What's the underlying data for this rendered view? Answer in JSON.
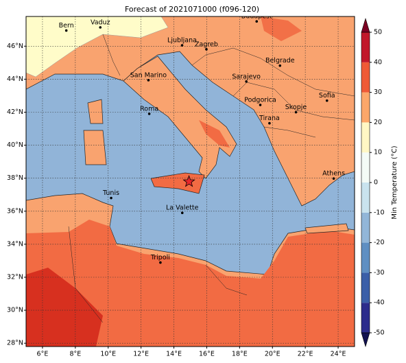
{
  "chart_data": {
    "type": "map",
    "title": "Forecast of 2021071000 (f096-120)",
    "xlim": [
      5,
      25
    ],
    "ylim": [
      27.8,
      47.8
    ],
    "xticks": [
      {
        "value": 6,
        "label": "6°E"
      },
      {
        "value": 8,
        "label": "8°E"
      },
      {
        "value": 10,
        "label": "10°E"
      },
      {
        "value": 12,
        "label": "12°E"
      },
      {
        "value": 14,
        "label": "14°E"
      },
      {
        "value": 16,
        "label": "16°E"
      },
      {
        "value": 18,
        "label": "18°E"
      },
      {
        "value": 20,
        "label": "20°E"
      },
      {
        "value": 22,
        "label": "22°E"
      },
      {
        "value": 24,
        "label": "24°E"
      }
    ],
    "yticks": [
      {
        "value": 28,
        "label": "28°N"
      },
      {
        "value": 30,
        "label": "30°N"
      },
      {
        "value": 32,
        "label": "32°N"
      },
      {
        "value": 34,
        "label": "34°N"
      },
      {
        "value": 36,
        "label": "36°N"
      },
      {
        "value": 38,
        "label": "38°N"
      },
      {
        "value": 40,
        "label": "40°N"
      },
      {
        "value": 42,
        "label": "42°N"
      },
      {
        "value": 44,
        "label": "44°N"
      },
      {
        "value": 46,
        "label": "46°N"
      }
    ],
    "grid": true,
    "cities": [
      {
        "name": "Bern",
        "lon": 7.45,
        "lat": 46.95
      },
      {
        "name": "Vaduz",
        "lon": 9.52,
        "lat": 47.14
      },
      {
        "name": "Budapest",
        "lon": 19.04,
        "lat": 47.5
      },
      {
        "name": "Ljubljana",
        "lon": 14.5,
        "lat": 46.05
      },
      {
        "name": "Zagreb",
        "lon": 15.98,
        "lat": 45.81
      },
      {
        "name": "Belgrade",
        "lon": 20.46,
        "lat": 44.82
      },
      {
        "name": "San Marino",
        "lon": 12.45,
        "lat": 43.94
      },
      {
        "name": "Sarajevo",
        "lon": 18.41,
        "lat": 43.86
      },
      {
        "name": "Sofia",
        "lon": 23.32,
        "lat": 42.7
      },
      {
        "name": "Roma",
        "lon": 12.5,
        "lat": 41.9
      },
      {
        "name": "Podgorica",
        "lon": 19.26,
        "lat": 42.44
      },
      {
        "name": "Skopje",
        "lon": 21.43,
        "lat": 42.0
      },
      {
        "name": "Tirana",
        "lon": 19.82,
        "lat": 41.33
      },
      {
        "name": "Athens",
        "lon": 23.73,
        "lat": 37.98
      },
      {
        "name": "Tunis",
        "lon": 10.18,
        "lat": 36.8
      },
      {
        "name": "La Valette",
        "lon": 14.51,
        "lat": 35.9
      },
      {
        "name": "Tripoli",
        "lon": 13.18,
        "lat": 32.89
      }
    ],
    "marker": {
      "lon": 14.92,
      "lat": 37.79,
      "color": "#e8262b"
    },
    "colorbar": {
      "label": "Min Temperature (°C)",
      "ticks": [
        -50,
        -40,
        -30,
        -20,
        -10,
        0,
        10,
        20,
        30,
        40,
        50
      ],
      "colors": [
        "#2c2c8c",
        "#3b5fa8",
        "#5f8fc2",
        "#92b6d8",
        "#c9e3ee",
        "#f4fbf6",
        "#fff7c4",
        "#fca76a",
        "#ef5a36",
        "#c1182a"
      ],
      "under_color": "#111150",
      "over_color": "#7c0022"
    }
  }
}
